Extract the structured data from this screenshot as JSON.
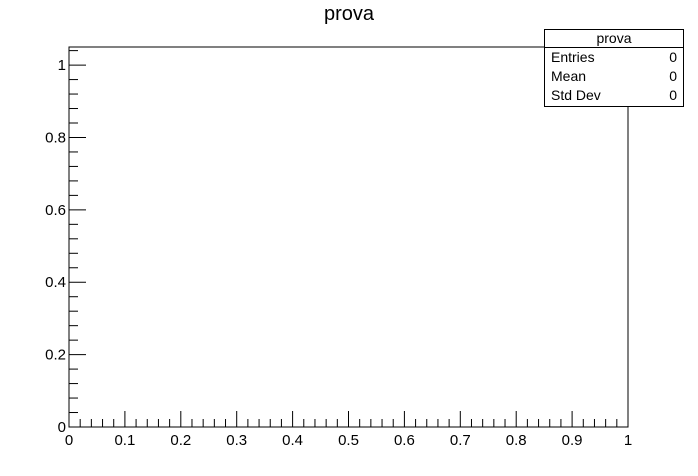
{
  "chart_data": {
    "type": "bar",
    "title": "prova",
    "xlabel": "",
    "ylabel": "",
    "xlim": [
      0,
      1
    ],
    "ylim": [
      0,
      1.05
    ],
    "x_ticks": [
      "0",
      "0.1",
      "0.2",
      "0.3",
      "0.4",
      "0.5",
      "0.6",
      "0.7",
      "0.8",
      "0.9",
      "1"
    ],
    "y_ticks": [
      "0",
      "0.2",
      "0.4",
      "0.6",
      "0.8",
      "1"
    ],
    "values": [],
    "grid": false,
    "legend": "top-right"
  },
  "stats": {
    "title": "prova",
    "rows": [
      {
        "label": "Entries",
        "value": "0"
      },
      {
        "label": "Mean",
        "value": "0"
      },
      {
        "label": "Std Dev",
        "value": "0"
      }
    ]
  }
}
